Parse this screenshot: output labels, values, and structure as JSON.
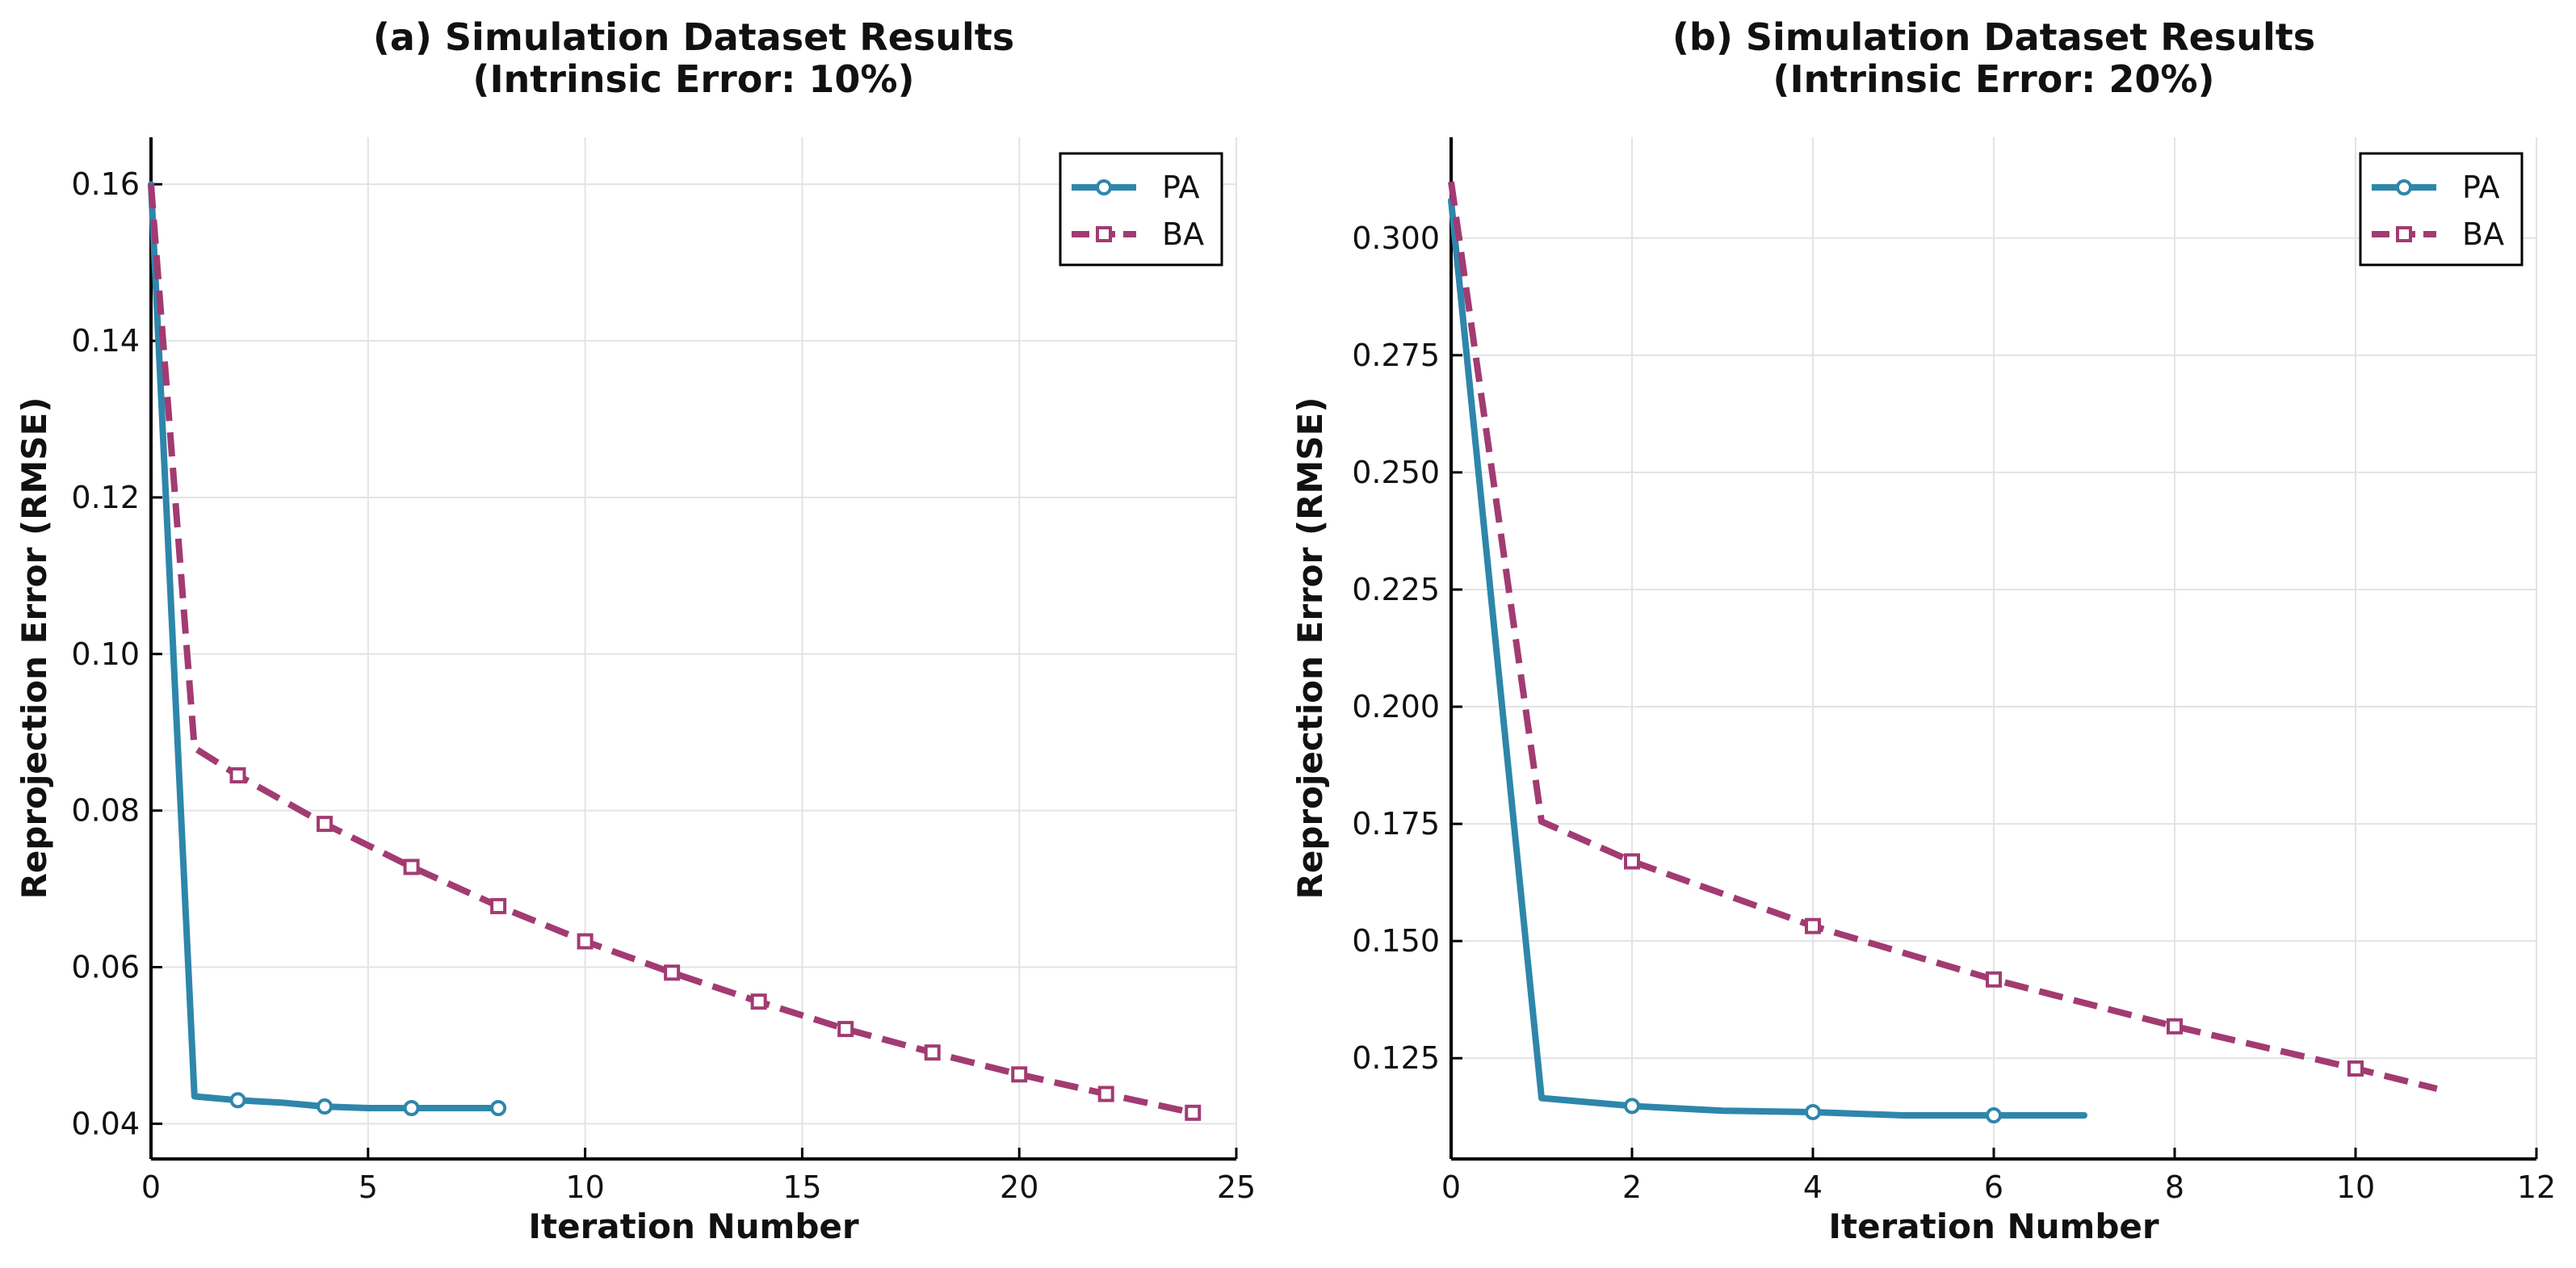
{
  "chart_data": [
    {
      "type": "line",
      "title": [
        "(a) Simulation Dataset Results",
        "(Intrinsic Error: 10%)"
      ],
      "xlabel": "Iteration Number",
      "ylabel": "Reprojection Error (RMSE)",
      "xlim": [
        0,
        25
      ],
      "ylim": [
        0.0355,
        0.166
      ],
      "xticks": [
        0,
        5,
        10,
        15,
        20,
        25
      ],
      "xtick_labels": [
        "0",
        "5",
        "10",
        "15",
        "20",
        "25"
      ],
      "yticks": [
        0.04,
        0.06,
        0.08,
        0.1,
        0.12,
        0.14,
        0.16
      ],
      "ytick_labels": [
        "0.04",
        "0.06",
        "0.08",
        "0.10",
        "0.12",
        "0.14",
        "0.16"
      ],
      "grid": true,
      "legend_position": "top-right",
      "series": [
        {
          "name": "PA",
          "color": "#2e86ab",
          "style": "solid",
          "marker": "circle",
          "marker_every": 2,
          "x": [
            0,
            1,
            2,
            3,
            4,
            5,
            6,
            7,
            8
          ],
          "y": [
            0.16,
            0.0435,
            0.043,
            0.0427,
            0.0422,
            0.042,
            0.042,
            0.042,
            0.042
          ]
        },
        {
          "name": "BA",
          "color": "#a23b72",
          "style": "dashed",
          "marker": "square",
          "marker_every": 2,
          "x": [
            0,
            1,
            2,
            4,
            6,
            8,
            10,
            12,
            14,
            16,
            18,
            20,
            22,
            24
          ],
          "y": [
            0.16,
            0.088,
            0.0845,
            0.0783,
            0.0728,
            0.0678,
            0.0633,
            0.0593,
            0.0556,
            0.0521,
            0.0491,
            0.0463,
            0.0438,
            0.0414
          ]
        }
      ]
    },
    {
      "type": "line",
      "title": [
        "(b) Simulation Dataset Results",
        "(Intrinsic Error: 20%)"
      ],
      "xlabel": "Iteration Number",
      "ylabel": "Reprojection Error (RMSE)",
      "xlim": [
        0,
        12
      ],
      "ylim": [
        0.1035,
        0.3215
      ],
      "xticks": [
        0,
        2,
        4,
        6,
        8,
        10,
        12
      ],
      "xtick_labels": [
        "0",
        "2",
        "4",
        "6",
        "8",
        "10",
        "12"
      ],
      "yticks": [
        0.125,
        0.15,
        0.175,
        0.2,
        0.225,
        0.25,
        0.275,
        0.3
      ],
      "ytick_labels": [
        "0.125",
        "0.150",
        "0.175",
        "0.200",
        "0.225",
        "0.250",
        "0.275",
        "0.300"
      ],
      "grid": true,
      "legend_position": "top-right",
      "series": [
        {
          "name": "PA",
          "color": "#2e86ab",
          "style": "solid",
          "marker": "circle",
          "marker_every": 2,
          "x": [
            0,
            1,
            2,
            3,
            4,
            5,
            6,
            7
          ],
          "y": [
            0.308,
            0.1165,
            0.1148,
            0.1138,
            0.1135,
            0.1128,
            0.1128,
            0.1128
          ]
        },
        {
          "name": "BA",
          "color": "#a23b72",
          "style": "dashed",
          "marker": "square",
          "marker_every": 2,
          "x": [
            0,
            1,
            2,
            4,
            6,
            8,
            10,
            10.9
          ],
          "y": [
            0.312,
            0.1755,
            0.167,
            0.1532,
            0.1418,
            0.1318,
            0.1228,
            0.1185
          ]
        }
      ]
    }
  ]
}
